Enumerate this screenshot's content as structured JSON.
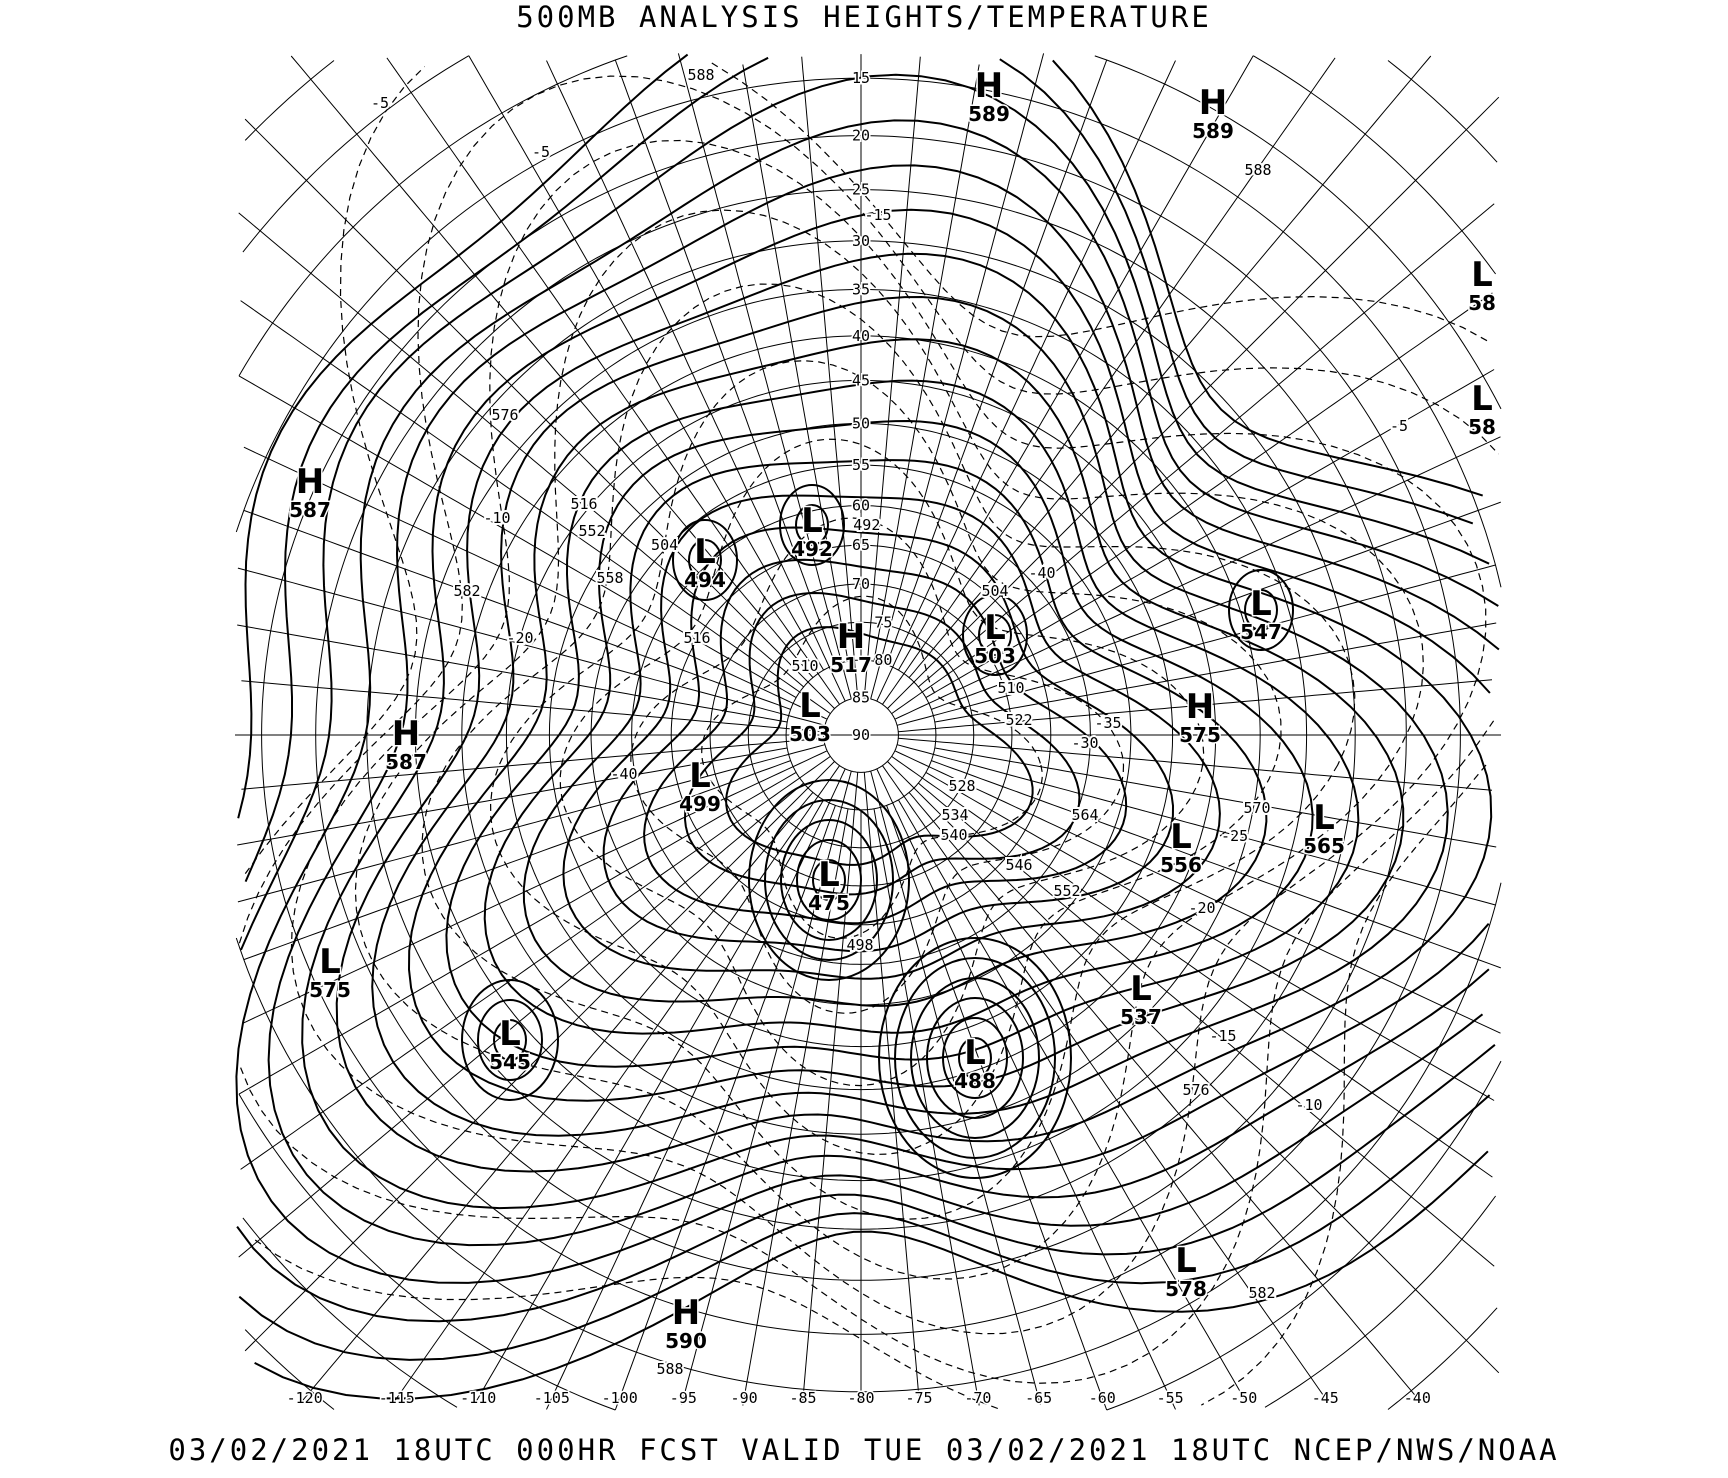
{
  "title": "500MB ANALYSIS  HEIGHTS/TEMPERATURE",
  "footer": "03/02/2021 18UTC 000HR FCST VALID TUE 03/02/2021 18UTC  NCEP/NWS/NOAA",
  "pressure_centers": [
    {
      "type": "H",
      "value": "589"
    },
    {
      "type": "H",
      "value": "589"
    },
    {
      "type": "L",
      "value": "58"
    },
    {
      "type": "L",
      "value": "58"
    },
    {
      "type": "H",
      "value": "587"
    },
    {
      "type": "L",
      "value": "492"
    },
    {
      "type": "L",
      "value": "494"
    },
    {
      "type": "L",
      "value": "547"
    },
    {
      "type": "H",
      "value": "517"
    },
    {
      "type": "L",
      "value": "503"
    },
    {
      "type": "H",
      "value": "575"
    },
    {
      "type": "L",
      "value": "503"
    },
    {
      "type": "H",
      "value": "587"
    },
    {
      "type": "L",
      "value": "499"
    },
    {
      "type": "L",
      "value": "556"
    },
    {
      "type": "L",
      "value": "565"
    },
    {
      "type": "L",
      "value": "475"
    },
    {
      "type": "L",
      "value": "575"
    },
    {
      "type": "L",
      "value": "545"
    },
    {
      "type": "L",
      "value": "537"
    },
    {
      "type": "L",
      "value": "488"
    },
    {
      "type": "L",
      "value": "578"
    },
    {
      "type": "H",
      "value": "590"
    }
  ],
  "longitude_labels": [
    "-120",
    "-115",
    "-110",
    "-105",
    "-100",
    "-95",
    "-90",
    "-85",
    "-80",
    "-75",
    "-70",
    "-65",
    "-60",
    "-55",
    "-50",
    "-45",
    "-40"
  ],
  "latitude_labels": [
    "15",
    "20",
    "25",
    "30",
    "35",
    "40",
    "45",
    "50",
    "55",
    "60",
    "65",
    "70",
    "75",
    "80",
    "85",
    "90"
  ],
  "contour_labels": [
    "588",
    "588",
    "588",
    "582",
    "582",
    "576",
    "576",
    "570",
    "564",
    "558",
    "552",
    "552",
    "546",
    "540",
    "534",
    "528",
    "522",
    "516",
    "516",
    "510",
    "510",
    "504",
    "504",
    "498",
    "492",
    "-5",
    "-5",
    "-5",
    "-10",
    "-10",
    "-15",
    "-15",
    "-20",
    "-20",
    "-25",
    "-30",
    "-35",
    "-40",
    "-40"
  ]
}
